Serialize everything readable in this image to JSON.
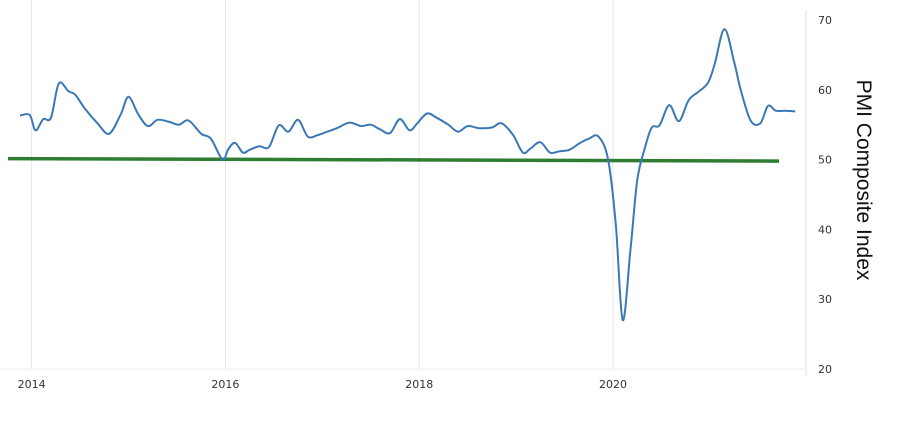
{
  "chart_data": {
    "type": "line",
    "title": "",
    "xlabel": "",
    "ylabel": "PMI Composite Index",
    "xlim": [
      2013.88,
      2021.93
    ],
    "ylim": [
      20,
      70
    ],
    "x_ticks": [
      2014,
      2016,
      2018,
      2020
    ],
    "x_tick_labels": [
      "2014",
      "2016",
      "2018",
      "2020"
    ],
    "y_ticks": [
      20,
      30,
      40,
      50,
      60,
      70
    ],
    "y_tick_labels": [
      "20",
      "30",
      "40",
      "50",
      "60",
      "70"
    ],
    "y_axis_side": "right",
    "grid": {
      "vertical": true,
      "horizontal": false
    },
    "reference_line": {
      "y": 50,
      "color": "#2e7d32"
    },
    "series": [
      {
        "color": "#3a78b5",
        "x": [
          2013.88,
          2013.98,
          2014.04,
          2014.12,
          2014.2,
          2014.28,
          2014.38,
          2014.45,
          2014.55,
          2014.68,
          2014.8,
          2014.92,
          2015.0,
          2015.1,
          2015.2,
          2015.3,
          2015.42,
          2015.52,
          2015.62,
          2015.75,
          2015.85,
          2015.97,
          2016.03,
          2016.1,
          2016.18,
          2016.25,
          2016.35,
          2016.45,
          2016.55,
          2016.65,
          2016.75,
          2016.85,
          2016.95,
          2017.05,
          2017.15,
          2017.28,
          2017.4,
          2017.5,
          2017.6,
          2017.7,
          2017.8,
          2017.9,
          2017.98,
          2018.08,
          2018.18,
          2018.3,
          2018.4,
          2018.5,
          2018.62,
          2018.75,
          2018.85,
          2018.97,
          2019.07,
          2019.15,
          2019.25,
          2019.35,
          2019.45,
          2019.55,
          2019.65,
          2019.75,
          2019.85,
          2019.95,
          2020.03,
          2020.1,
          2020.18,
          2020.25,
          2020.33,
          2020.4,
          2020.48,
          2020.58,
          2020.68,
          2020.78,
          2020.88,
          2020.98,
          2021.05,
          2021.15,
          2021.25,
          2021.32,
          2021.42,
          2021.52,
          2021.6,
          2021.68,
          2021.78,
          2021.88
        ],
        "y": [
          56.3,
          56.4,
          54.2,
          55.8,
          56.0,
          60.9,
          59.8,
          59.3,
          57.3,
          55.2,
          53.7,
          56.5,
          59.0,
          56.5,
          54.8,
          55.7,
          55.4,
          55.0,
          55.6,
          53.7,
          53.0,
          50.0,
          51.5,
          52.4,
          51.0,
          51.4,
          51.9,
          51.8,
          54.9,
          54.0,
          55.7,
          53.3,
          53.5,
          54.0,
          54.5,
          55.3,
          54.8,
          55.0,
          54.3,
          53.8,
          55.8,
          54.2,
          55.2,
          56.6,
          56.0,
          55.0,
          54.0,
          54.8,
          54.5,
          54.6,
          55.2,
          53.5,
          51.0,
          51.6,
          52.5,
          51.0,
          51.2,
          51.4,
          52.3,
          53.0,
          53.3,
          50.0,
          40.5,
          27.0,
          37.0,
          47.0,
          51.7,
          54.6,
          54.9,
          57.8,
          55.5,
          58.5,
          59.7,
          61.0,
          63.7,
          68.7,
          64.0,
          59.9,
          55.6,
          55.2,
          57.7,
          57.0,
          57.0,
          56.9
        ]
      }
    ]
  }
}
